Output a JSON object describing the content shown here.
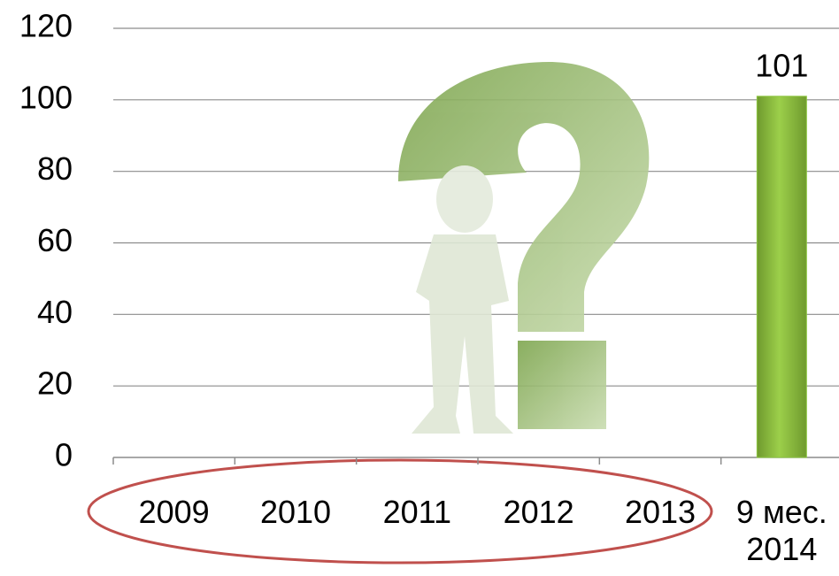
{
  "chart_data": {
    "type": "bar",
    "categories": [
      "2009",
      "2010",
      "2011",
      "2012",
      "2013",
      "9 мес. 2014"
    ],
    "values": [
      null,
      null,
      null,
      null,
      null,
      101
    ],
    "color": "#8cc63f",
    "ylim": [
      0,
      120
    ],
    "yticks": [
      0,
      20,
      40,
      60,
      80,
      100,
      120
    ],
    "grid": true
  }
}
